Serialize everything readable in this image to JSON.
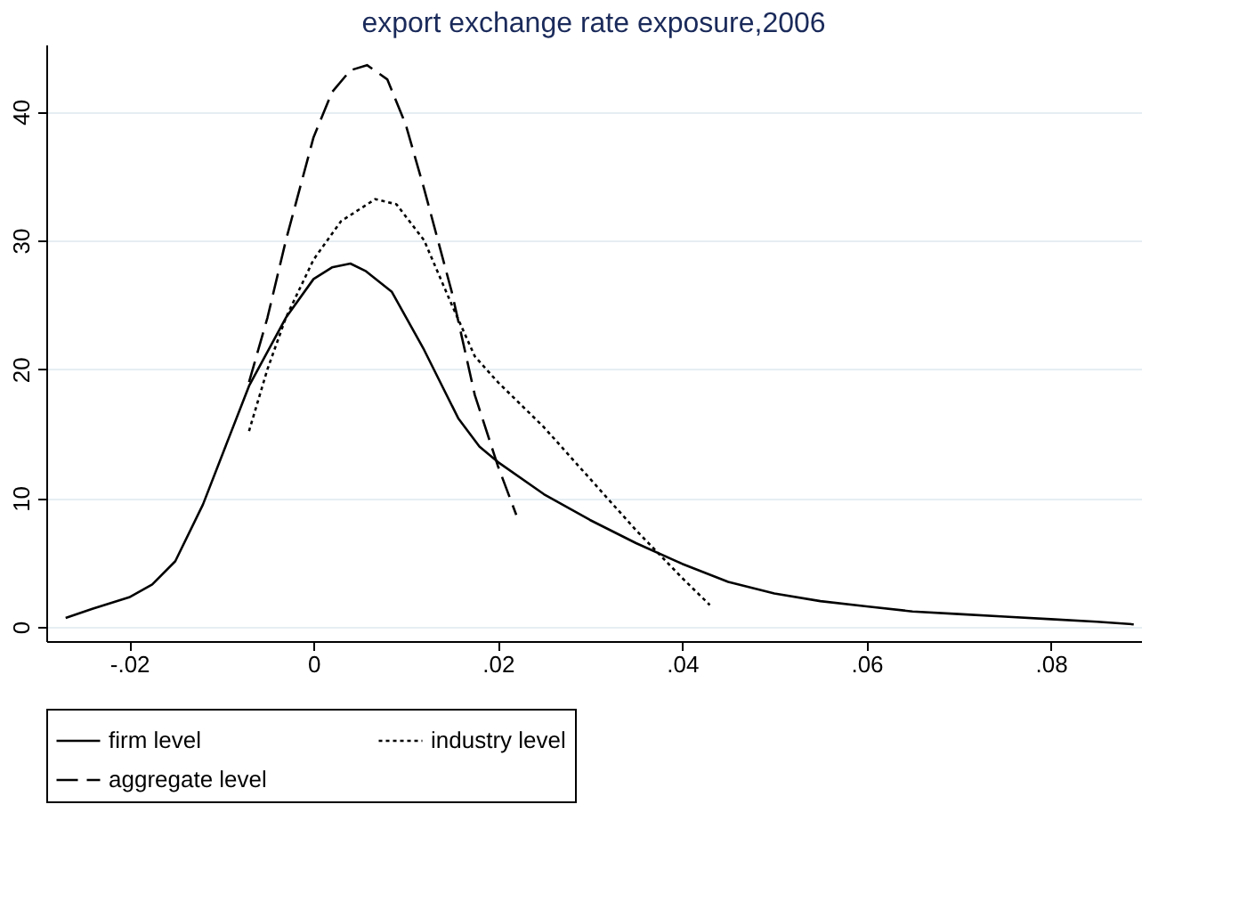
{
  "chart_data": {
    "type": "line",
    "title": "export exchange rate exposure,2006",
    "xlim": [
      -0.029,
      0.0898
    ],
    "ylim": [
      -1.1,
      45.2
    ],
    "xticks": [
      {
        "value": -0.02,
        "label": "-.02"
      },
      0,
      {
        "value": 0.02,
        "label": ".02"
      },
      {
        "value": 0.04,
        "label": ".04"
      },
      {
        "value": 0.06,
        "label": ".06"
      },
      {
        "value": 0.08,
        "label": ".08"
      }
    ],
    "yticks": [
      0,
      10,
      20,
      30,
      40
    ],
    "grid": "y",
    "legend": "bottom",
    "series": [
      {
        "name": "firm level",
        "color": "#000000",
        "line_style": "solid",
        "x": [
          -0.0269,
          -0.024,
          -0.02,
          -0.0175,
          -0.015,
          -0.012,
          -0.007,
          -0.003,
          0,
          0.002,
          0.004,
          0.0057,
          0.0085,
          0.012,
          0.0157,
          0.018,
          0.02,
          0.025,
          0.03,
          0.035,
          0.04,
          0.045,
          0.05,
          0.055,
          0.06,
          0.065,
          0.07,
          0.075,
          0.08,
          0.085,
          0.089
        ],
        "values": [
          0.7,
          1.4,
          2.3,
          3.3,
          5.1,
          9.5,
          18.7,
          24,
          27,
          27.9,
          28.2,
          27.6,
          26,
          21.5,
          16.2,
          14,
          12.8,
          10.3,
          8.3,
          6.5,
          4.9,
          3.5,
          2.6,
          2.0,
          1.6,
          1.2,
          1.0,
          0.8,
          0.6,
          0.4,
          0.2
        ]
      },
      {
        "name": "industry level",
        "color": "#000000",
        "line_style": "dotted",
        "x": [
          -0.007,
          -0.005,
          -0.003,
          0,
          0.003,
          0.0067,
          0.009,
          0.012,
          0.015,
          0.0175,
          0.02,
          0.025,
          0.03,
          0.035,
          0.04,
          0.043
        ],
        "values": [
          15.2,
          20,
          24,
          28.5,
          31.5,
          33.2,
          32.8,
          30,
          25,
          21,
          19,
          15.5,
          11.5,
          7.5,
          3.8,
          1.7
        ]
      },
      {
        "name": "aggregate level",
        "color": "#000000",
        "line_style": "dashed",
        "x": [
          -0.007,
          -0.005,
          -0.003,
          0,
          0.002,
          0.004,
          0.0058,
          0.008,
          0.01,
          0.012,
          0.015,
          0.0175,
          0.02,
          0.022
        ],
        "values": [
          19,
          24,
          30,
          38,
          41.5,
          43.2,
          43.6,
          42.5,
          39,
          34,
          26,
          18,
          12.5,
          8.7
        ]
      }
    ]
  }
}
